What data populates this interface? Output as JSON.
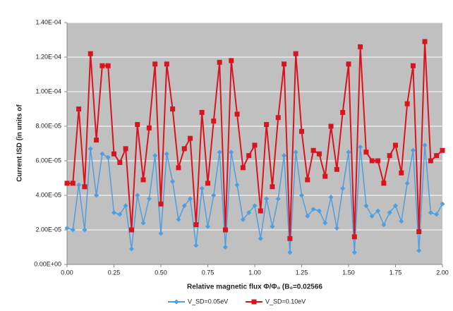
{
  "chart_data": {
    "type": "line",
    "y_label": "Current ISD (in units of",
    "x_label": "Relative magnetic flux Φ/Φ₀ (B₀=0.02566",
    "x": [
      0,
      0.03125,
      0.0625,
      0.09375,
      0.125,
      0.15625,
      0.1875,
      0.21875,
      0.25,
      0.28125,
      0.3125,
      0.34375,
      0.375,
      0.40625,
      0.4375,
      0.46875,
      0.5,
      0.53125,
      0.5625,
      0.59375,
      0.625,
      0.65625,
      0.6875,
      0.71875,
      0.75,
      0.78125,
      0.8125,
      0.84375,
      0.875,
      0.90625,
      0.9375,
      0.96875,
      1,
      1.03125,
      1.0625,
      1.09375,
      1.125,
      1.15625,
      1.1875,
      1.21875,
      1.25,
      1.28125,
      1.3125,
      1.34375,
      1.375,
      1.40625,
      1.4375,
      1.46875,
      1.5,
      1.53125,
      1.5625,
      1.59375,
      1.625,
      1.65625,
      1.6875,
      1.71875,
      1.75,
      1.78125,
      1.8125,
      1.84375,
      1.875,
      1.90625,
      1.9375,
      1.96875,
      2
    ],
    "series": [
      {
        "name": "V_SD=0.05eV",
        "color": "#4f9fe0",
        "marker": "diamond",
        "values": [
          2.1e-05,
          2e-05,
          4.6e-05,
          2e-05,
          6.7e-05,
          4e-05,
          6.4e-05,
          6.2e-05,
          3e-05,
          2.9e-05,
          3.4e-05,
          9e-06,
          4e-05,
          2.4e-05,
          3.8e-05,
          6.3e-05,
          1.8e-05,
          6.4e-05,
          4.8e-05,
          2.6e-05,
          3.4e-05,
          3.8e-05,
          1.1e-05,
          4.4e-05,
          2.2e-05,
          4e-05,
          6.5e-05,
          1e-05,
          6.5e-05,
          4.6e-05,
          2.6e-05,
          3e-05,
          3.4e-05,
          1.5e-05,
          3.8e-05,
          2.2e-05,
          3.8e-05,
          6.3e-05,
          7e-06,
          6.5e-05,
          4e-05,
          2.8e-05,
          3.2e-05,
          3.1e-05,
          2.4e-05,
          3.9e-05,
          2.1e-05,
          4.4e-05,
          6.5e-05,
          7e-06,
          6.8e-05,
          3.4e-05,
          2.8e-05,
          3.1e-05,
          2.3e-05,
          3e-05,
          3.4e-05,
          2.5e-05,
          4.7e-05,
          6.6e-05,
          8e-06,
          6.9e-05,
          3e-05,
          2.9e-05,
          3.5e-05
        ]
      },
      {
        "name": "V_SD=0.10eV",
        "color": "#d9141e",
        "marker": "square",
        "values": [
          4.7e-05,
          4.7e-05,
          9e-05,
          4.5e-05,
          0.000122,
          7.2e-05,
          0.000115,
          0.000115,
          6.4e-05,
          5.9e-05,
          6.7e-05,
          2e-05,
          8.1e-05,
          4.9e-05,
          7.9e-05,
          0.000116,
          3.5e-05,
          0.000116,
          9e-05,
          5.6e-05,
          6.7e-05,
          7.3e-05,
          2.3e-05,
          8.8e-05,
          4.7e-05,
          8.3e-05,
          0.000117,
          2e-05,
          0.000118,
          8.7e-05,
          5.6e-05,
          6.3e-05,
          6.9e-05,
          3.1e-05,
          8.1e-05,
          4.5e-05,
          8.5e-05,
          0.000116,
          1.5e-05,
          0.000122,
          7.7e-05,
          4.9e-05,
          6.6e-05,
          6.4e-05,
          5.1e-05,
          8e-05,
          5.5e-05,
          8.8e-05,
          0.000116,
          1.6e-05,
          0.000126,
          6.5e-05,
          6e-05,
          6e-05,
          4.7e-05,
          6.3e-05,
          6.9e-05,
          5.3e-05,
          9.3e-05,
          0.000115,
          1.9e-05,
          0.000129,
          6e-05,
          6.3e-05,
          6.6e-05
        ]
      }
    ],
    "xlim": [
      0,
      2
    ],
    "xticks": [
      {
        "value": 0,
        "label": "0.00"
      },
      {
        "value": 0.25,
        "label": "0.25"
      },
      {
        "value": 0.5,
        "label": "0.50"
      },
      {
        "value": 0.75,
        "label": "0.75"
      },
      {
        "value": 1,
        "label": "1.00"
      },
      {
        "value": 1.25,
        "label": "1.25"
      },
      {
        "value": 1.5,
        "label": "1.50"
      },
      {
        "value": 1.75,
        "label": "1.75"
      },
      {
        "value": 2,
        "label": "2.00"
      }
    ],
    "ylim": [
      0,
      0.00014
    ],
    "yticks": [
      {
        "value": 0,
        "label": "0.00E+00"
      },
      {
        "value": 2e-05,
        "label": "2.00E-05"
      },
      {
        "value": 4e-05,
        "label": "4.00E-05"
      },
      {
        "value": 6e-05,
        "label": "6.00E-05"
      },
      {
        "value": 8e-05,
        "label": "8.00E-05"
      },
      {
        "value": 0.0001,
        "label": "1.00E-04"
      },
      {
        "value": 0.00012,
        "label": "1.20E-04"
      },
      {
        "value": 0.00014,
        "label": "1.40E-04"
      }
    ],
    "grid": true,
    "legend": "bottom"
  }
}
